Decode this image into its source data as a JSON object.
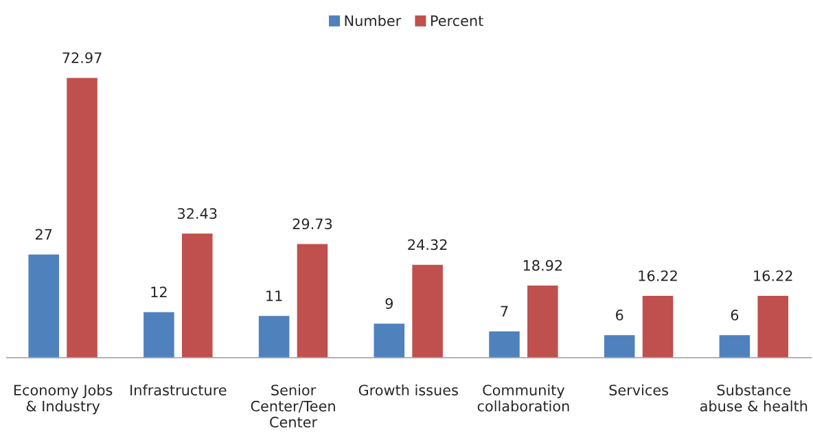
{
  "chart_data": {
    "type": "bar",
    "categories": [
      "Economy Jobs\n& Industry",
      "Infrastructure",
      "Senior\nCenter/Teen\nCenter",
      "Growth issues",
      "Community\ncollaboration",
      "Services",
      "Substance\nabuse & health"
    ],
    "series": [
      {
        "name": "Number",
        "color": "#4f81bd",
        "values": [
          27,
          12,
          11,
          9,
          7,
          6,
          6
        ]
      },
      {
        "name": "Percent",
        "color": "#c0504d",
        "values": [
          72.97,
          32.43,
          29.73,
          24.32,
          18.92,
          16.22,
          16.22
        ]
      }
    ],
    "data_labels": true,
    "legend": "top",
    "grid": false
  }
}
